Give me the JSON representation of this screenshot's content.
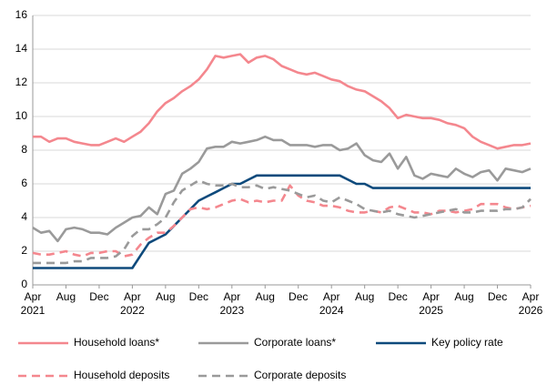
{
  "chart_data": {
    "type": "line",
    "categories": [
      "Apr 2021",
      null,
      null,
      null,
      "Aug",
      null,
      null,
      null,
      "Dec",
      null,
      null,
      null,
      "Apr 2022",
      null,
      null,
      null,
      "Aug",
      null,
      null,
      null,
      "Dec",
      null,
      null,
      null,
      "Apr 2023",
      null,
      null,
      null,
      "Aug",
      null,
      null,
      null,
      "Dec",
      null,
      null,
      null,
      "Apr 2024",
      null,
      null,
      null,
      "Aug",
      null,
      null,
      null,
      "Dec",
      null,
      null,
      null,
      "Apr 2025",
      null,
      null,
      null,
      "Aug",
      null,
      null,
      null,
      "Dec",
      null,
      null,
      null,
      "Apr 2026"
    ],
    "series": [
      {
        "name": "Household loans*",
        "color": "#f4878e",
        "dash": false,
        "values": [
          8.8,
          8.8,
          8.5,
          8.7,
          8.7,
          8.5,
          8.4,
          8.3,
          8.3,
          8.5,
          8.7,
          8.5,
          8.8,
          9.1,
          9.6,
          10.3,
          10.8,
          11.1,
          11.5,
          11.8,
          12.2,
          12.8,
          13.6,
          13.5,
          13.6,
          13.7,
          13.2,
          13.5,
          13.6,
          13.4,
          13.0,
          12.8,
          12.6,
          12.5,
          12.6,
          12.4,
          12.2,
          12.1,
          11.8,
          11.6,
          11.5,
          11.2,
          10.9,
          10.5,
          9.9,
          10.1,
          10.0,
          9.9,
          9.9,
          9.8,
          9.6,
          9.5,
          9.3,
          8.8,
          8.5,
          8.3,
          8.1,
          8.2,
          8.3,
          8.3,
          8.4
        ]
      },
      {
        "name": "Corporate loans*",
        "color": "#9a9a9a",
        "dash": false,
        "values": [
          3.4,
          3.1,
          3.2,
          2.6,
          3.3,
          3.4,
          3.3,
          3.1,
          3.1,
          3.0,
          3.4,
          3.7,
          4.0,
          4.1,
          4.6,
          4.2,
          5.4,
          5.6,
          6.6,
          6.9,
          7.3,
          8.1,
          8.2,
          8.2,
          8.5,
          8.4,
          8.5,
          8.6,
          8.8,
          8.6,
          8.6,
          8.3,
          8.3,
          8.3,
          8.2,
          8.3,
          8.3,
          8.0,
          8.1,
          8.4,
          7.7,
          7.4,
          7.3,
          7.8,
          6.9,
          7.6,
          6.5,
          6.3,
          6.6,
          6.5,
          6.4,
          6.9,
          6.6,
          6.4,
          6.7,
          6.8,
          6.2,
          6.9,
          6.8,
          6.7,
          6.9
        ]
      },
      {
        "name": "Key policy rate",
        "color": "#0e4a7c",
        "dash": false,
        "values": [
          1.0,
          1.0,
          1.0,
          1.0,
          1.0,
          1.0,
          1.0,
          1.0,
          1.0,
          1.0,
          1.0,
          1.0,
          1.0,
          1.75,
          2.5,
          2.75,
          3.0,
          3.5,
          4.0,
          4.5,
          5.0,
          5.25,
          5.5,
          5.75,
          6.0,
          6.0,
          6.25,
          6.5,
          6.5,
          6.5,
          6.5,
          6.5,
          6.5,
          6.5,
          6.5,
          6.5,
          6.5,
          6.5,
          6.25,
          6.0,
          6.0,
          5.75,
          5.75,
          5.75,
          5.75,
          5.75,
          5.75,
          5.75,
          5.75,
          5.75,
          5.75,
          5.75,
          5.75,
          5.75,
          5.75,
          5.75,
          5.75,
          5.75,
          5.75,
          5.75,
          5.75
        ]
      },
      {
        "name": "Household deposits",
        "color": "#f4878e",
        "dash": true,
        "values": [
          1.9,
          1.8,
          1.8,
          1.9,
          2.0,
          1.8,
          1.7,
          1.9,
          1.9,
          2.0,
          2.0,
          1.7,
          1.8,
          2.4,
          2.8,
          3.1,
          3.1,
          3.5,
          4.0,
          4.5,
          4.6,
          4.5,
          4.6,
          4.8,
          5.0,
          5.1,
          4.9,
          5.0,
          4.9,
          5.0,
          5.0,
          5.9,
          5.3,
          5.0,
          4.9,
          4.7,
          4.7,
          4.6,
          4.4,
          4.3,
          4.3,
          4.4,
          4.3,
          4.6,
          4.7,
          4.5,
          4.3,
          4.3,
          4.2,
          4.4,
          4.4,
          4.3,
          4.4,
          4.5,
          4.8,
          4.8,
          4.8,
          4.6,
          4.5,
          4.6,
          4.7
        ]
      },
      {
        "name": "Corporate deposits",
        "color": "#9a9a9a",
        "dash": true,
        "values": [
          1.3,
          1.3,
          1.3,
          1.3,
          1.3,
          1.4,
          1.4,
          1.6,
          1.6,
          1.6,
          1.7,
          2.1,
          2.9,
          3.3,
          3.3,
          3.6,
          4.0,
          4.9,
          5.6,
          5.9,
          6.2,
          6.0,
          5.9,
          5.9,
          6.0,
          5.8,
          5.8,
          5.9,
          5.7,
          5.8,
          5.7,
          5.6,
          5.4,
          5.2,
          5.3,
          5.0,
          4.9,
          5.2,
          5.0,
          4.8,
          4.5,
          4.4,
          4.3,
          4.4,
          4.2,
          4.1,
          4.0,
          4.1,
          4.2,
          4.3,
          4.4,
          4.5,
          4.3,
          4.3,
          4.4,
          4.4,
          4.4,
          4.5,
          4.5,
          4.6,
          5.1
        ]
      }
    ],
    "ylim": [
      0,
      16
    ],
    "yticks": [
      0,
      2,
      4,
      6,
      8,
      10,
      12,
      14,
      16
    ],
    "grid": true,
    "legend": "bottom"
  }
}
